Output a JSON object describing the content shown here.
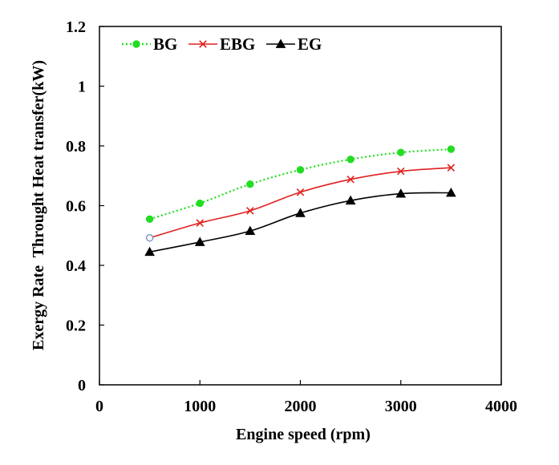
{
  "chart_data": {
    "type": "line",
    "title": "",
    "xlabel": "Engine speed (rpm)",
    "ylabel": "Exergy Rate  Throught Heat transfer(kW)",
    "xlim": [
      0,
      4000
    ],
    "ylim": [
      0,
      1.2
    ],
    "x_ticks": [
      0,
      1000,
      2000,
      3000,
      4000
    ],
    "x_tick_labels": [
      "0",
      "1000",
      "2000",
      "3000",
      "4000"
    ],
    "y_ticks": [
      0,
      0.2,
      0.4,
      0.6,
      0.8,
      1.0,
      1.2
    ],
    "y_tick_labels": [
      "0",
      "0.2",
      "0.4",
      "0.6",
      "0.8",
      "1",
      "1.2"
    ],
    "grid": false,
    "legend_position": "top-left",
    "x": [
      500,
      1000,
      1500,
      2000,
      2500,
      3000,
      3500
    ],
    "series": [
      {
        "name": "BG",
        "values": [
          0.555,
          0.608,
          0.672,
          0.72,
          0.755,
          0.778,
          0.789
        ],
        "color": "#22dd22",
        "line_style": "dotted",
        "marker": "circle"
      },
      {
        "name": "EBG",
        "values": [
          0.492,
          0.542,
          0.583,
          0.645,
          0.688,
          0.715,
          0.727
        ],
        "color": "#e02020",
        "line_style": "solid",
        "marker": "x"
      },
      {
        "name": "EG",
        "values": [
          0.445,
          0.478,
          0.515,
          0.575,
          0.617,
          0.64,
          0.643
        ],
        "color": "#000000",
        "line_style": "solid",
        "marker": "triangle"
      }
    ]
  }
}
